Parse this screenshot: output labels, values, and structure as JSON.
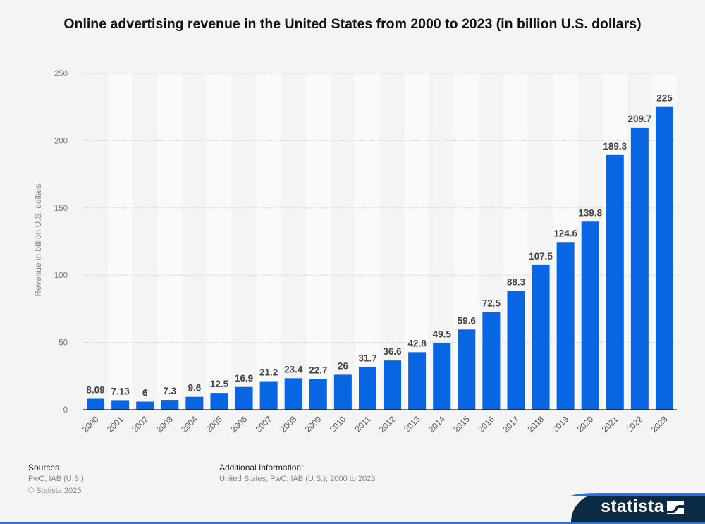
{
  "chart_data": {
    "type": "bar",
    "title": "Online advertising revenue in the United States from 2000 to 2023 (in billion U.S. dollars)",
    "xlabel": "",
    "ylabel": "Revenue in billion U.S. dollars",
    "ylim": [
      0,
      250
    ],
    "yticks": [
      0,
      50,
      100,
      150,
      200,
      250
    ],
    "grid": true,
    "bar_color": "#0866e3",
    "categories": [
      "2000",
      "2001",
      "2002",
      "2003",
      "2004",
      "2005",
      "2006",
      "2007",
      "2008",
      "2009",
      "2010",
      "2011",
      "2012",
      "2013",
      "2014",
      "2015",
      "2016",
      "2017",
      "2018",
      "2019",
      "2020",
      "2021",
      "2022",
      "2023"
    ],
    "values": [
      8.09,
      7.13,
      6,
      7.3,
      9.6,
      12.5,
      16.9,
      21.2,
      23.4,
      22.7,
      26,
      31.7,
      36.6,
      42.8,
      49.5,
      59.6,
      72.5,
      88.3,
      107.5,
      124.6,
      139.8,
      189.3,
      209.7,
      225
    ],
    "labels": [
      "8.09",
      "7.13",
      "6",
      "7.3",
      "9.6",
      "12.5",
      "16.9",
      "21.2",
      "23.4",
      "22.7",
      "26",
      "31.7",
      "36.6",
      "42.8",
      "49.5",
      "59.6",
      "72.5",
      "88.3",
      "107.5",
      "124.6",
      "139.8",
      "189.3",
      "209.7",
      "225"
    ]
  },
  "footer": {
    "sources_label": "Sources",
    "sources_text": "PwC; IAB (U.S.)",
    "copyright": "© Statista 2025",
    "additional_label": "Additional Information:",
    "additional_text": "United States; PwC; IAB (U.S.); 2000 to 2023"
  },
  "brand": {
    "logo_text": "statista",
    "logo_icon": "statista-logo-icon"
  }
}
